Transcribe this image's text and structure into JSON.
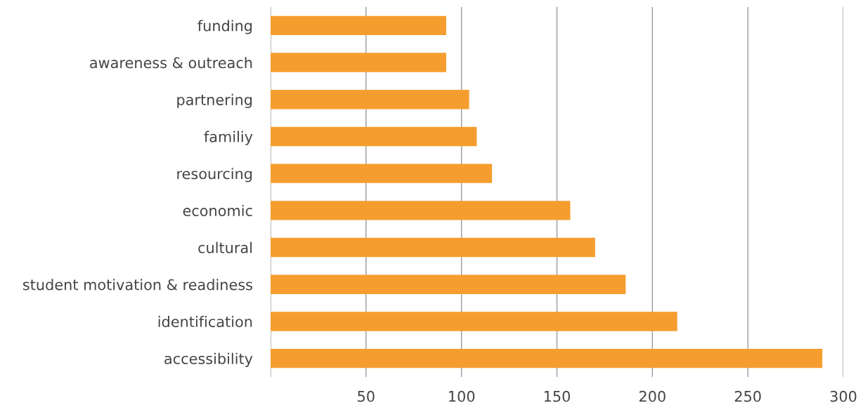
{
  "chart_data": {
    "type": "bar",
    "orientation": "horizontal",
    "categories": [
      "funding",
      "awareness & outreach",
      "partnering",
      "familiy",
      "resourcing",
      "economic",
      "cultural",
      "student motivation & readiness",
      "identification",
      "accessibility"
    ],
    "values": [
      92,
      92,
      104,
      108,
      116,
      157,
      170,
      186,
      213,
      289
    ],
    "color": "#f59e2f",
    "xlim": [
      0,
      300
    ],
    "xticks": [
      {
        "value": 0,
        "label": null
      },
      50,
      100,
      150,
      200,
      250,
      300
    ],
    "grid": "x",
    "legend": false
  }
}
